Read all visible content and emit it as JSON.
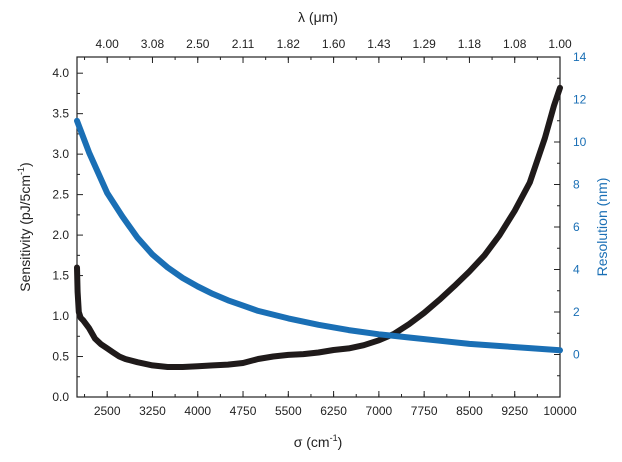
{
  "chart_data": {
    "type": "line",
    "title": "",
    "colors": {
      "sensitivity": "#1f1a1a",
      "resolution": "#1a6fb5",
      "axis": "#222222"
    },
    "xaxis_bottom": {
      "label_symbol": "σ",
      "label_unit": "(cm",
      "label_exp": "-1",
      "label_close": ")",
      "range": [
        2000,
        10000
      ],
      "ticks": [
        2500,
        3250,
        4000,
        4750,
        5500,
        6250,
        7000,
        7750,
        8500,
        9250,
        10000
      ],
      "tick_labels": [
        "2500",
        "3250",
        "4000",
        "4750",
        "5500",
        "6250",
        "7000",
        "7750",
        "8500",
        "9250",
        "10000"
      ]
    },
    "xaxis_top": {
      "label": "λ (μm)",
      "ticks_at_sigma": [
        2500,
        3250,
        4000,
        4750,
        5500,
        6250,
        7000,
        7750,
        8500,
        9250,
        10000
      ],
      "tick_labels": [
        "4.00",
        "3.08",
        "2.50",
        "2.11",
        "1.82",
        "1.60",
        "1.43",
        "1.29",
        "1.18",
        "1.08",
        "1.00"
      ]
    },
    "yaxis_left": {
      "label_main": "Sensitivity (pJ/5cm",
      "label_exp": "-1",
      "label_close": ")",
      "range": [
        0,
        4.2
      ],
      "ticks": [
        0.0,
        0.5,
        1.0,
        1.5,
        2.0,
        2.5,
        3.0,
        3.5,
        4.0
      ],
      "tick_labels": [
        "0.0",
        "0.5",
        "1.0",
        "1.5",
        "2.0",
        "2.5",
        "3.0",
        "3.5",
        "4.0"
      ]
    },
    "yaxis_right": {
      "label": "Resolution (nm)",
      "range": [
        -2,
        14
      ],
      "ticks": [
        0,
        2,
        4,
        6,
        8,
        10,
        12,
        14
      ],
      "tick_labels": [
        "0",
        "2",
        "4",
        "6",
        "8",
        "10",
        "12",
        "14"
      ]
    },
    "series": [
      {
        "name": "Sensitivity",
        "axis": "left",
        "x": [
          2000,
          2010,
          2030,
          2060,
          2100,
          2200,
          2300,
          2400,
          2500,
          2600,
          2700,
          2800,
          3000,
          3250,
          3500,
          3750,
          4000,
          4250,
          4500,
          4750,
          5000,
          5250,
          5500,
          5750,
          6000,
          6250,
          6500,
          6750,
          7000,
          7250,
          7500,
          7750,
          8000,
          8250,
          8500,
          8750,
          9000,
          9250,
          9500,
          9750,
          9900,
          10000
        ],
        "y": [
          1.6,
          1.3,
          1.05,
          0.98,
          0.95,
          0.85,
          0.72,
          0.65,
          0.6,
          0.55,
          0.5,
          0.47,
          0.43,
          0.39,
          0.37,
          0.37,
          0.38,
          0.39,
          0.4,
          0.42,
          0.47,
          0.5,
          0.52,
          0.53,
          0.55,
          0.58,
          0.6,
          0.64,
          0.7,
          0.78,
          0.9,
          1.04,
          1.2,
          1.37,
          1.55,
          1.75,
          2.0,
          2.3,
          2.65,
          3.2,
          3.6,
          3.82
        ]
      },
      {
        "name": "Resolution",
        "axis": "right",
        "x": [
          2000,
          2200,
          2500,
          2750,
          3000,
          3250,
          3500,
          3750,
          4000,
          4250,
          4500,
          4750,
          5000,
          5500,
          6000,
          6500,
          7000,
          7500,
          8000,
          8500,
          9000,
          9500,
          10000
        ],
        "y": [
          11.0,
          9.5,
          7.6,
          6.5,
          5.5,
          4.7,
          4.1,
          3.6,
          3.2,
          2.85,
          2.55,
          2.3,
          2.05,
          1.7,
          1.4,
          1.15,
          0.95,
          0.8,
          0.65,
          0.5,
          0.4,
          0.3,
          0.2
        ]
      }
    ]
  }
}
